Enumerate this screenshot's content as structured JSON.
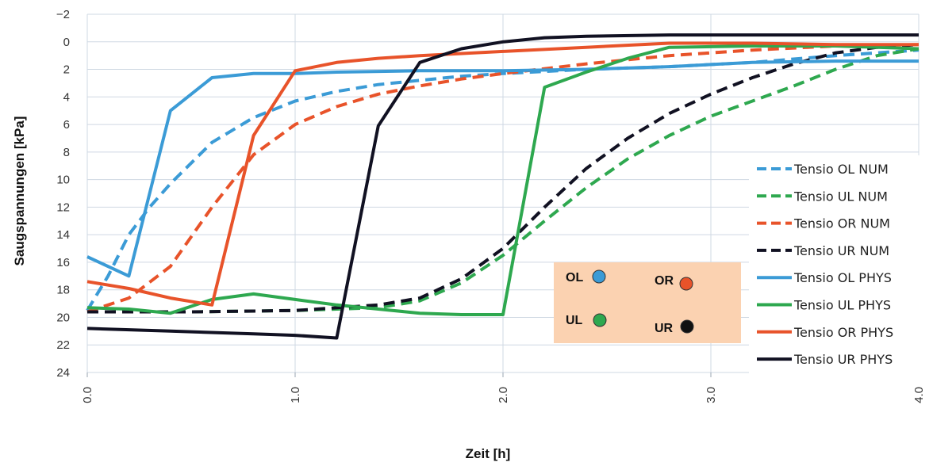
{
  "chart_data": {
    "type": "line",
    "title": "",
    "xlabel": "Zeit [h]",
    "ylabel": "Saugspannungen [kPa]",
    "xlim": [
      0,
      4
    ],
    "ylim": [
      -2,
      24
    ],
    "y_inverted": true,
    "grid": true,
    "x_ticks": [
      0.0,
      1.0,
      2.0,
      3.0,
      4.0
    ],
    "x_tick_labels": [
      "0.0",
      "1.0",
      "2.0",
      "3.0",
      "4.0"
    ],
    "y_ticks": [
      -2,
      0,
      2,
      4,
      6,
      8,
      10,
      12,
      14,
      16,
      18,
      20,
      22,
      24
    ],
    "y_tick_labels": [
      "−2",
      "0",
      "2",
      "4",
      "6",
      "8",
      "10",
      "12",
      "14",
      "16",
      "18",
      "20",
      "22",
      "24"
    ],
    "legend_position": "right",
    "series": [
      {
        "name": "Tensio OL NUM",
        "style": "dashed",
        "color": "#3b9bd6",
        "x": [
          0,
          0.1,
          0.2,
          0.3,
          0.4,
          0.6,
          0.8,
          1.0,
          1.2,
          1.4,
          1.6,
          1.8,
          2.0,
          2.4,
          2.8,
          3.2,
          3.6,
          4.0
        ],
        "y": [
          19.5,
          17.0,
          14.0,
          12.0,
          10.3,
          7.3,
          5.5,
          4.3,
          3.6,
          3.1,
          2.8,
          2.5,
          2.3,
          2.0,
          1.8,
          1.5,
          1.0,
          0.6
        ]
      },
      {
        "name": "Tensio UL NUM",
        "style": "dashed",
        "color": "#2ea84f",
        "x": [
          0,
          0.5,
          1.0,
          1.4,
          1.6,
          1.8,
          2.0,
          2.2,
          2.4,
          2.6,
          2.8,
          3.0,
          3.2,
          3.4,
          3.6,
          3.8,
          4.0
        ],
        "y": [
          19.6,
          19.6,
          19.5,
          19.3,
          18.8,
          17.5,
          15.5,
          13.0,
          10.6,
          8.5,
          6.8,
          5.4,
          4.3,
          3.2,
          2.0,
          1.0,
          0.5
        ]
      },
      {
        "name": "Tensio OR NUM",
        "style": "dashed",
        "color": "#e8532a",
        "x": [
          0,
          0.2,
          0.4,
          0.6,
          0.8,
          1.0,
          1.2,
          1.4,
          1.6,
          1.8,
          2.0,
          2.4,
          2.8,
          3.2,
          3.6,
          4.0
        ],
        "y": [
          19.6,
          18.6,
          16.3,
          12.0,
          8.2,
          6.0,
          4.7,
          3.8,
          3.2,
          2.7,
          2.3,
          1.6,
          1.0,
          0.6,
          0.3,
          0.2
        ]
      },
      {
        "name": "Tensio UR NUM",
        "style": "dashed",
        "color": "#111122",
        "x": [
          0,
          0.5,
          1.0,
          1.4,
          1.6,
          1.8,
          2.0,
          2.2,
          2.4,
          2.6,
          2.8,
          3.0,
          3.2,
          3.4,
          3.6,
          3.8,
          4.0
        ],
        "y": [
          19.6,
          19.6,
          19.5,
          19.1,
          18.6,
          17.2,
          15.0,
          12.0,
          9.2,
          7.0,
          5.2,
          3.8,
          2.6,
          1.6,
          0.8,
          0.4,
          0.2
        ]
      },
      {
        "name": "Tensio OL PHYS",
        "style": "solid",
        "color": "#3b9bd6",
        "x": [
          0,
          0.2,
          0.4,
          0.6,
          0.8,
          1.0,
          1.2,
          1.6,
          2.0,
          2.4,
          2.8,
          3.2,
          3.6,
          4.0
        ],
        "y": [
          15.6,
          17.0,
          5.0,
          2.6,
          2.3,
          2.3,
          2.2,
          2.1,
          2.1,
          2.0,
          1.8,
          1.5,
          1.4,
          1.4
        ]
      },
      {
        "name": "Tensio UL PHYS",
        "style": "solid",
        "color": "#2ea84f",
        "x": [
          0,
          0.2,
          0.4,
          0.6,
          0.8,
          1.0,
          1.2,
          1.4,
          1.6,
          1.8,
          2.0,
          2.2,
          2.4,
          2.6,
          2.8,
          3.2,
          3.6,
          4.0
        ],
        "y": [
          19.3,
          19.4,
          19.7,
          18.7,
          18.3,
          18.7,
          19.1,
          19.4,
          19.7,
          19.8,
          19.8,
          3.3,
          2.2,
          1.2,
          0.4,
          0.3,
          0.3,
          0.5
        ]
      },
      {
        "name": "Tensio OR PHYS",
        "style": "solid",
        "color": "#e8532a",
        "x": [
          0,
          0.2,
          0.4,
          0.6,
          0.8,
          1.0,
          1.2,
          1.4,
          1.6,
          2.0,
          2.4,
          2.8,
          3.2,
          3.6,
          4.0
        ],
        "y": [
          17.4,
          17.9,
          18.6,
          19.1,
          6.8,
          2.1,
          1.5,
          1.2,
          1.0,
          0.7,
          0.4,
          0.1,
          0.1,
          0.2,
          0.2
        ]
      },
      {
        "name": "Tensio UR PHYS",
        "style": "solid",
        "color": "#111122",
        "x": [
          0,
          0.4,
          0.8,
          1.0,
          1.2,
          1.4,
          1.6,
          1.8,
          2.0,
          2.2,
          2.4,
          2.8,
          3.2,
          3.6,
          4.0
        ],
        "y": [
          20.8,
          21.0,
          21.2,
          21.3,
          21.5,
          6.1,
          1.5,
          0.5,
          0.0,
          -0.3,
          -0.4,
          -0.5,
          -0.5,
          -0.5,
          -0.5
        ]
      }
    ],
    "sensor_box": {
      "background": "#fbd2b1",
      "items": [
        {
          "label": "OL",
          "color": "#3b9bd6"
        },
        {
          "label": "OR",
          "color": "#e8532a"
        },
        {
          "label": "UL",
          "color": "#2ea84f"
        },
        {
          "label": "UR",
          "color": "#111111"
        }
      ]
    }
  }
}
